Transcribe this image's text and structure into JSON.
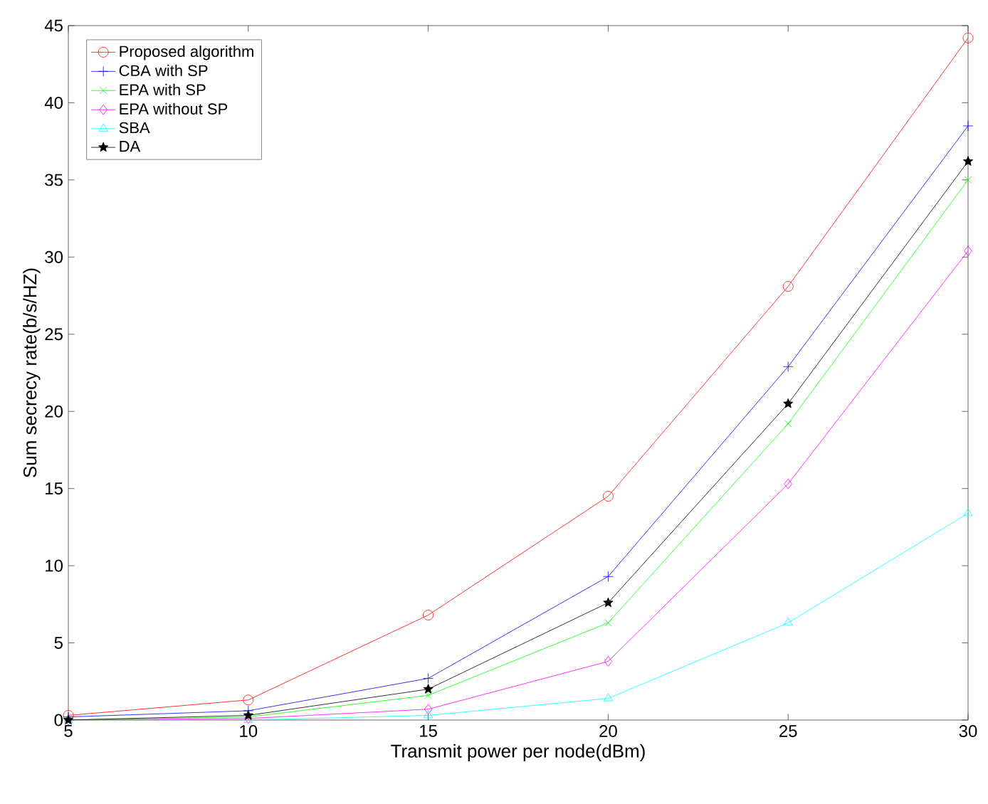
{
  "chart_data": {
    "type": "line",
    "xlabel": "Transmit power per node(dBm)",
    "ylabel": "Sum secrecy rate(b/s/HZ)",
    "x": [
      5,
      10,
      15,
      20,
      25,
      30
    ],
    "series": [
      {
        "name": "Proposed algorithm",
        "color": "#ff0000",
        "marker": "circle",
        "values": [
          0.3,
          1.3,
          6.8,
          14.5,
          28.1,
          44.2
        ]
      },
      {
        "name": "CBA with SP",
        "color": "#0000ff",
        "marker": "plus",
        "values": [
          0.2,
          0.6,
          2.7,
          9.3,
          22.9,
          38.5
        ]
      },
      {
        "name": "EPA with SP",
        "color": "#00ff00",
        "marker": "cross",
        "values": [
          0.0,
          0.2,
          1.6,
          6.3,
          19.2,
          35.0
        ]
      },
      {
        "name": "EPA without SP",
        "color": "#ff00ff",
        "marker": "diamond",
        "values": [
          0.0,
          0.1,
          0.7,
          3.8,
          15.3,
          30.4
        ]
      },
      {
        "name": "SBA",
        "color": "#00ffff",
        "marker": "triangle",
        "values": [
          0.0,
          0.0,
          0.3,
          1.4,
          6.3,
          13.4
        ]
      },
      {
        "name": "DA",
        "color": "#000000",
        "marker": "star",
        "values": [
          0.0,
          0.3,
          2.0,
          7.6,
          20.5,
          36.2
        ]
      }
    ],
    "xlim": [
      5,
      30
    ],
    "xticks": [
      5,
      10,
      15,
      20,
      25,
      30
    ],
    "ylim": [
      0,
      45
    ],
    "yticks": [
      0,
      5,
      10,
      15,
      20,
      25,
      30,
      35,
      40,
      45
    ],
    "legend": "top left",
    "line_style": "solid"
  }
}
